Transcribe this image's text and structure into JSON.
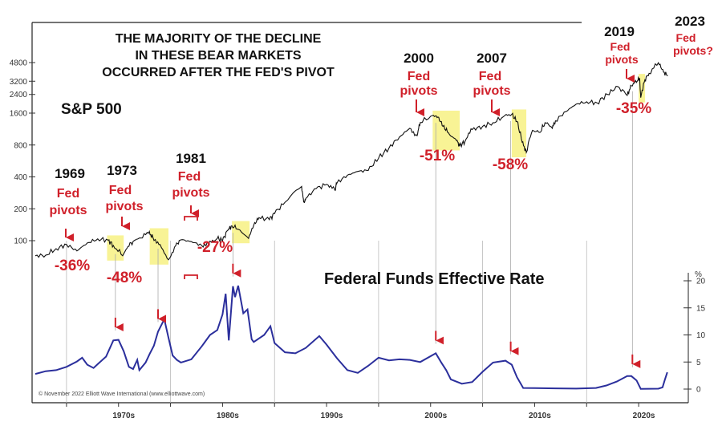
{
  "chart_data": {
    "type": "line",
    "title": "THE MAJORITY OF THE DECLINE IN THESE BEAR MARKETS OCCURRED AFTER THE FED'S PIVOT",
    "title_lines": [
      "THE MAJORITY OF THE DECLINE",
      "IN THESE BEAR MARKETS",
      "OCCURRED AFTER THE FED'S PIVOT"
    ],
    "credit": "© November 2022 Elliott Wave International (www.elliottwave.com)",
    "xlim": [
      1962,
      2023
    ],
    "x_ticks": [
      {
        "label": "1970s",
        "x": 1970.5
      },
      {
        "label": "1980s",
        "x": 1980.5
      },
      {
        "label": "1990s",
        "x": 1990.5
      },
      {
        "label": "2000s",
        "x": 2000.5
      },
      {
        "label": "2010s",
        "x": 2010.5
      },
      {
        "label": "2020s",
        "x": 2020.5
      }
    ],
    "x_gridlines": [
      1965,
      1975,
      1985,
      1995,
      2005,
      2015
    ],
    "spx": {
      "name": "S&P 500",
      "scale": "log",
      "ylim": [
        60,
        6000
      ],
      "y_ticks": [
        {
          "label": "100",
          "v": 100
        },
        {
          "label": "200",
          "v": 200
        },
        {
          "label": "400",
          "v": 400
        },
        {
          "label": "800",
          "v": 800
        },
        {
          "label": "1600",
          "v": 1600
        },
        {
          "label": "2400",
          "v": 2400
        },
        {
          "label": "3200",
          "v": 3200
        },
        {
          "label": "4800",
          "v": 4800
        }
      ],
      "points": [
        [
          1962,
          72
        ],
        [
          1963,
          73
        ],
        [
          1964,
          84
        ],
        [
          1965,
          92
        ],
        [
          1966,
          80
        ],
        [
          1967,
          95
        ],
        [
          1968,
          104
        ],
        [
          1969,
          101
        ],
        [
          1969.5,
          90
        ],
        [
          1970.4,
          72
        ],
        [
          1970.9,
          88
        ],
        [
          1971.5,
          100
        ],
        [
          1972,
          106
        ],
        [
          1972.9,
          118
        ],
        [
          1973.3,
          108
        ],
        [
          1974,
          92
        ],
        [
          1974.8,
          66
        ],
        [
          1975.5,
          90
        ],
        [
          1976,
          102
        ],
        [
          1977,
          98
        ],
        [
          1978,
          90
        ],
        [
          1978.8,
          99
        ],
        [
          1979.5,
          105
        ],
        [
          1980,
          100
        ],
        [
          1980.5,
          125
        ],
        [
          1980.9,
          138
        ],
        [
          1981.5,
          128
        ],
        [
          1982.5,
          105
        ],
        [
          1983,
          140
        ],
        [
          1983.5,
          165
        ],
        [
          1984.5,
          158
        ],
        [
          1985,
          180
        ],
        [
          1986,
          230
        ],
        [
          1987.6,
          325
        ],
        [
          1987.8,
          230
        ],
        [
          1988,
          250
        ],
        [
          1989,
          310
        ],
        [
          1990,
          340
        ],
        [
          1990.8,
          300
        ],
        [
          1991,
          350
        ],
        [
          1992,
          415
        ],
        [
          1993,
          450
        ],
        [
          1994,
          460
        ],
        [
          1995,
          600
        ],
        [
          1996,
          750
        ],
        [
          1997,
          950
        ],
        [
          1998,
          1150
        ],
        [
          1998.7,
          980
        ],
        [
          1999,
          1300
        ],
        [
          2000.2,
          1520
        ],
        [
          2000.7,
          1470
        ],
        [
          2001.2,
          1200
        ],
        [
          2001.7,
          1050
        ],
        [
          2002.5,
          880
        ],
        [
          2002.8,
          790
        ],
        [
          2003.3,
          860
        ],
        [
          2004,
          1120
        ],
        [
          2005,
          1200
        ],
        [
          2006,
          1300
        ],
        [
          2007,
          1480
        ],
        [
          2007.8,
          1560
        ],
        [
          2008.3,
          1330
        ],
        [
          2008.8,
          850
        ],
        [
          2009.2,
          680
        ],
        [
          2009.8,
          1100
        ],
        [
          2010.5,
          1050
        ],
        [
          2011,
          1300
        ],
        [
          2011.7,
          1150
        ],
        [
          2012,
          1350
        ],
        [
          2013,
          1650
        ],
        [
          2014,
          1950
        ],
        [
          2015,
          2050
        ],
        [
          2016,
          2000
        ],
        [
          2017,
          2400
        ],
        [
          2018,
          2850
        ],
        [
          2018.9,
          2350
        ],
        [
          2019.3,
          2900
        ],
        [
          2019.9,
          3250
        ],
        [
          2020.1,
          3380
        ],
        [
          2020.2,
          2240
        ],
        [
          2020.6,
          3300
        ],
        [
          2021,
          3800
        ],
        [
          2021.9,
          4780
        ],
        [
          2022.4,
          3900
        ],
        [
          2022.8,
          3600
        ]
      ]
    },
    "fed_funds": {
      "name": "Federal Funds Effective Rate",
      "unit": "%",
      "ylim": [
        -2,
        21
      ],
      "y_ticks": [
        {
          "label": "0",
          "v": 0
        },
        {
          "label": "5",
          "v": 5
        },
        {
          "label": "10",
          "v": 10
        },
        {
          "label": "15",
          "v": 15
        },
        {
          "label": "20",
          "v": 20
        }
      ],
      "points": [
        [
          1962,
          2.8
        ],
        [
          1963,
          3.3
        ],
        [
          1964,
          3.5
        ],
        [
          1965,
          4.1
        ],
        [
          1966,
          5.1
        ],
        [
          1966.5,
          5.8
        ],
        [
          1967,
          4.5
        ],
        [
          1967.6,
          3.9
        ],
        [
          1968,
          4.6
        ],
        [
          1968.8,
          6.0
        ],
        [
          1969.5,
          9.0
        ],
        [
          1970,
          9.1
        ],
        [
          1970.5,
          7.0
        ],
        [
          1971,
          4.1
        ],
        [
          1971.4,
          3.7
        ],
        [
          1971.8,
          5.4
        ],
        [
          1972,
          3.5
        ],
        [
          1972.6,
          4.9
        ],
        [
          1973,
          6.5
        ],
        [
          1973.4,
          8.0
        ],
        [
          1973.8,
          10.6
        ],
        [
          1974.4,
          12.9
        ],
        [
          1974.8,
          9.5
        ],
        [
          1975.2,
          6.2
        ],
        [
          1975.6,
          5.4
        ],
        [
          1976,
          4.9
        ],
        [
          1977,
          5.5
        ],
        [
          1978,
          7.9
        ],
        [
          1978.8,
          10.0
        ],
        [
          1979.5,
          10.9
        ],
        [
          1980,
          13.8
        ],
        [
          1980.3,
          17.6
        ],
        [
          1980.6,
          9.0
        ],
        [
          1981,
          19.0
        ],
        [
          1981.2,
          17.0
        ],
        [
          1981.5,
          19.1
        ],
        [
          1982,
          14.0
        ],
        [
          1982.4,
          14.7
        ],
        [
          1982.8,
          9.2
        ],
        [
          1983,
          8.7
        ],
        [
          1984,
          10.0
        ],
        [
          1984.6,
          11.6
        ],
        [
          1985,
          8.5
        ],
        [
          1986,
          6.8
        ],
        [
          1987,
          6.6
        ],
        [
          1988,
          7.6
        ],
        [
          1989.3,
          9.8
        ],
        [
          1990,
          8.2
        ],
        [
          1991,
          5.7
        ],
        [
          1992,
          3.5
        ],
        [
          1993,
          3.0
        ],
        [
          1994,
          4.3
        ],
        [
          1995,
          5.8
        ],
        [
          1996,
          5.3
        ],
        [
          1997,
          5.5
        ],
        [
          1998,
          5.4
        ],
        [
          1999,
          5.0
        ],
        [
          2000.5,
          6.6
        ],
        [
          2001,
          5.0
        ],
        [
          2001.5,
          3.5
        ],
        [
          2001.95,
          1.8
        ],
        [
          2003,
          1.0
        ],
        [
          2004,
          1.3
        ],
        [
          2005,
          3.2
        ],
        [
          2006,
          4.9
        ],
        [
          2007.2,
          5.25
        ],
        [
          2007.8,
          4.5
        ],
        [
          2008.3,
          2.2
        ],
        [
          2008.9,
          0.2
        ],
        [
          2010,
          0.18
        ],
        [
          2012,
          0.14
        ],
        [
          2014,
          0.09
        ],
        [
          2015.9,
          0.2
        ],
        [
          2016.9,
          0.66
        ],
        [
          2017.9,
          1.4
        ],
        [
          2018.9,
          2.4
        ],
        [
          2019.3,
          2.4
        ],
        [
          2019.8,
          1.6
        ],
        [
          2020.2,
          0.05
        ],
        [
          2021.9,
          0.08
        ],
        [
          2022.3,
          0.33
        ],
        [
          2022.5,
          1.6
        ],
        [
          2022.75,
          3.1
        ]
      ]
    },
    "bear_markets": [
      {
        "start": 1968.9,
        "end": 1970.5,
        "drawdown": "-36%"
      },
      {
        "start": 1973.0,
        "end": 1974.8,
        "drawdown": "-48%"
      },
      {
        "start": 1980.9,
        "end": 1982.6,
        "drawdown": "-27%"
      },
      {
        "start": 2000.2,
        "end": 2002.8,
        "drawdown": "-51%"
      },
      {
        "start": 2007.8,
        "end": 2009.2,
        "drawdown": "-58%"
      },
      {
        "start": 2020.0,
        "end": 2020.3,
        "drawdown": "-35%"
      }
    ],
    "pivots": [
      {
        "year": "1969",
        "line1": "Fed",
        "line2": "pivots",
        "x": 1969.7
      },
      {
        "year": "1973",
        "line1": "Fed",
        "line2": "pivots",
        "x": 1973.8
      },
      {
        "year": "1981",
        "line1": "Fed",
        "line2": "pivots",
        "x": 1981.0
      },
      {
        "year": "2000",
        "line1": "Fed",
        "line2": "pivots",
        "x": 2000.5
      },
      {
        "year": "2007",
        "line1": "Fed",
        "line2": "pivots",
        "x": 2007.7
      },
      {
        "year": "2019",
        "line1": "Fed",
        "line2": "pivots",
        "x": 2019.4
      },
      {
        "year": "2023",
        "line1": "Fed",
        "line2": "pivots?",
        "x": 2023.0
      }
    ]
  }
}
